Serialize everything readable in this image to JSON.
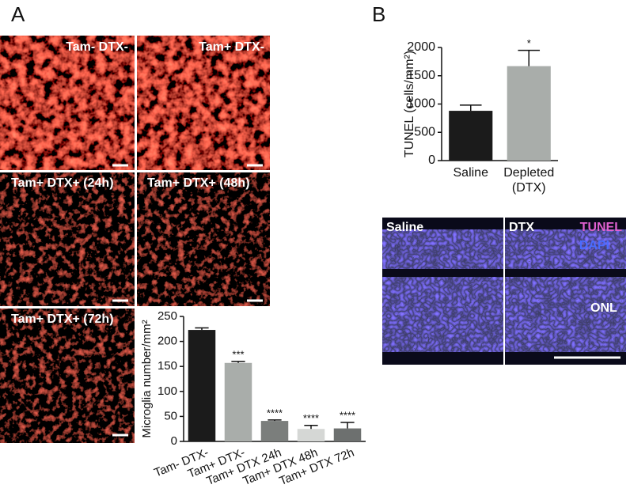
{
  "panels": {
    "a_label": "A",
    "b_label": "B",
    "a_images": [
      "Tam- DTX-",
      "Tam+ DTX-",
      "Tam+ DTX+ (24h)",
      "Tam+ DTX+ (48h)",
      "Tam+ DTX+ (72h)"
    ],
    "b_image": {
      "left": "Saline",
      "right": "DTX",
      "stain1": "TUNEL",
      "stain2": "DAPI",
      "layer": "ONL"
    }
  },
  "chart_data": [
    {
      "type": "bar",
      "ylabel": "Microglia number/mm²",
      "categories": [
        "Tam- DTX-",
        "Tam+ DTX-",
        "Tam+ DTX 24h",
        "Tam+ DTX 48h",
        "Tam+ DTX 72h"
      ],
      "values": [
        223,
        157,
        41,
        25,
        26
      ],
      "errors": [
        4,
        3,
        2,
        7,
        12
      ],
      "annotations": [
        null,
        "***",
        "****",
        "****",
        "****"
      ],
      "colors": [
        "#1b1b1b",
        "#a9adaa",
        "#7b7e7c",
        "#d5d7d5",
        "#6d706f"
      ],
      "ylim": [
        0,
        250
      ],
      "yticks": [
        0,
        50,
        100,
        150,
        200,
        250
      ]
    },
    {
      "type": "bar",
      "ylabel": "TUNEL (cells/mm²)",
      "categories": [
        "Saline",
        [
          "Depleted",
          "(DTX)"
        ]
      ],
      "values": [
        880,
        1670
      ],
      "errors": [
        100,
        280
      ],
      "annotations": [
        null,
        "*"
      ],
      "colors": [
        "#1b1b1b",
        "#a9adaa"
      ],
      "ylim": [
        0,
        2000
      ],
      "yticks": [
        0,
        500,
        1000,
        1500,
        2000
      ]
    }
  ]
}
